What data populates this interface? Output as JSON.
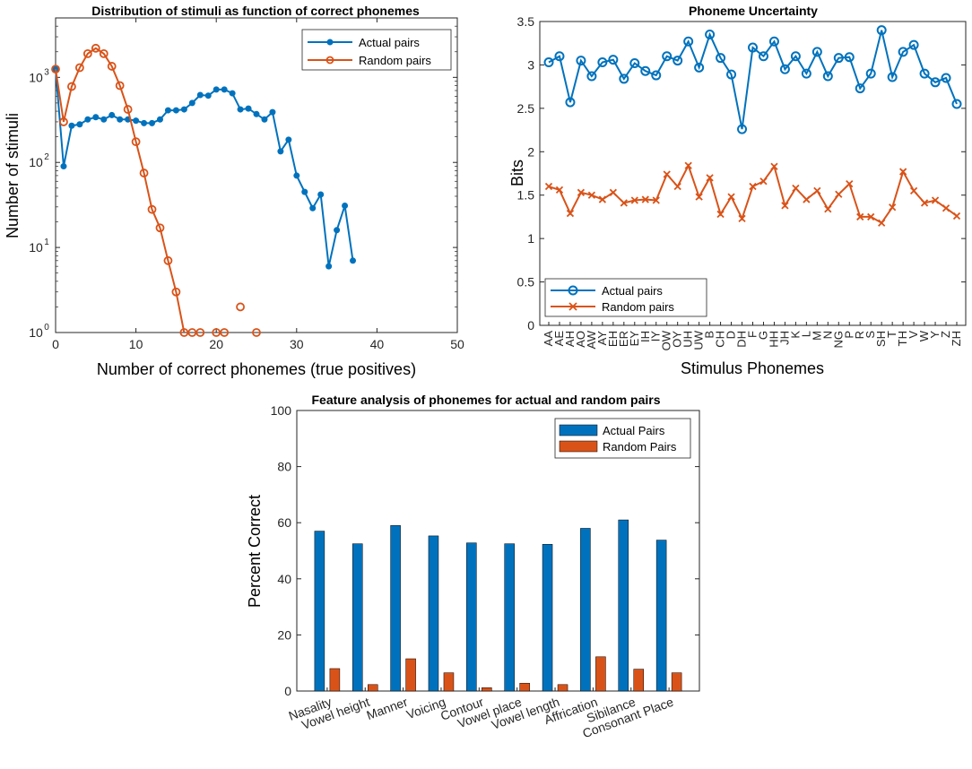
{
  "colors": {
    "actual": "#0072BD",
    "random": "#D95319"
  },
  "chart_data": [
    {
      "type": "line",
      "title": "Distribution of stimuli as function of correct phonemes",
      "xlabel": "Number of correct phonemes (true positives)",
      "ylabel": "Number of stimuli",
      "xlim": [
        0,
        50
      ],
      "ylim": [
        1,
        5000
      ],
      "yscale": "log",
      "xticks": [
        "0",
        "10",
        "20",
        "30",
        "40",
        "50"
      ],
      "yticks": [
        {
          "base": "10",
          "exp": "0"
        },
        {
          "base": "10",
          "exp": "1"
        },
        {
          "base": "10",
          "exp": "2"
        },
        {
          "base": "10",
          "exp": "3"
        }
      ],
      "legend_position": "top-right",
      "series": [
        {
          "name": "Actual pairs",
          "marker": "filled-circle",
          "x": [
            0,
            1,
            2,
            3,
            4,
            5,
            6,
            7,
            8,
            9,
            10,
            11,
            12,
            13,
            14,
            15,
            16,
            17,
            18,
            19,
            20,
            21,
            22,
            23,
            24,
            25,
            26,
            27,
            28,
            29,
            30,
            31,
            32,
            33,
            34,
            35,
            36,
            37
          ],
          "y": [
            1250,
            90,
            270,
            280,
            320,
            340,
            320,
            360,
            320,
            320,
            310,
            290,
            290,
            320,
            410,
            410,
            420,
            500,
            620,
            610,
            720,
            720,
            650,
            420,
            430,
            370,
            320,
            390,
            135,
            185,
            70,
            45,
            29,
            42,
            6,
            16,
            31,
            7
          ]
        },
        {
          "name": "Random pairs",
          "marker": "open-circle",
          "x": [
            0,
            1,
            2,
            3,
            4,
            5,
            6,
            7,
            8,
            9,
            10,
            11,
            12,
            13,
            14,
            15,
            16,
            17,
            18,
            20,
            21,
            23,
            25
          ],
          "y": [
            1250,
            300,
            780,
            1300,
            1900,
            2200,
            1900,
            1350,
            800,
            420,
            175,
            75,
            28,
            17,
            7,
            3,
            1,
            1,
            1,
            1,
            1,
            2,
            1
          ]
        }
      ]
    },
    {
      "type": "line",
      "title": "Phoneme Uncertainty",
      "xlabel": "Stimulus Phonemes",
      "ylabel": "Bits",
      "ylim": [
        0,
        3.5
      ],
      "yticks": [
        "0",
        "0.5",
        "1",
        "1.5",
        "2",
        "2.5",
        "3",
        "3.5"
      ],
      "categories": [
        "AA",
        "AE",
        "AH",
        "AO",
        "AW",
        "AY",
        "EH",
        "ER",
        "EY",
        "IH",
        "IY",
        "OW",
        "OY",
        "UH",
        "UW",
        "B",
        "CH",
        "D",
        "DH",
        "F",
        "G",
        "HH",
        "JH",
        "K",
        "L",
        "M",
        "N",
        "NG",
        "P",
        "R",
        "S",
        "SH",
        "T",
        "TH",
        "V",
        "W",
        "Y",
        "Z",
        "ZH"
      ],
      "legend_position": "bottom-left",
      "series": [
        {
          "name": "Actual pairs",
          "marker": "open-circle",
          "values": [
            3.03,
            3.1,
            2.57,
            3.05,
            2.87,
            3.03,
            3.06,
            2.84,
            3.02,
            2.93,
            2.88,
            3.1,
            3.05,
            3.27,
            2.97,
            3.35,
            3.08,
            2.89,
            2.26,
            3.2,
            3.1,
            3.27,
            2.95,
            3.1,
            2.9,
            3.15,
            2.87,
            3.08,
            3.09,
            2.73,
            2.9,
            3.4,
            2.86,
            3.15,
            3.23,
            2.9,
            2.8,
            2.85,
            2.55
          ]
        },
        {
          "name": "Random pairs",
          "marker": "x",
          "values": [
            1.6,
            1.56,
            1.29,
            1.53,
            1.5,
            1.45,
            1.53,
            1.41,
            1.44,
            1.45,
            1.44,
            1.74,
            1.6,
            1.84,
            1.48,
            1.7,
            1.28,
            1.48,
            1.23,
            1.6,
            1.66,
            1.83,
            1.38,
            1.58,
            1.45,
            1.55,
            1.34,
            1.51,
            1.63,
            1.25,
            1.25,
            1.18,
            1.36,
            1.77,
            1.55,
            1.41,
            1.44,
            1.35,
            1.26
          ]
        }
      ]
    },
    {
      "type": "bar",
      "title": "Feature analysis of phonemes for actual and random pairs",
      "xlabel": "",
      "ylabel": "Percent Correct",
      "ylim": [
        0,
        100
      ],
      "yticks": [
        "0",
        "20",
        "40",
        "60",
        "80",
        "100"
      ],
      "categories": [
        "Nasality",
        "Vowel height",
        "Manner",
        "Voicing",
        "Contour",
        "Vowel place",
        "Vowel length",
        "Affrication",
        "Sibilance",
        "Consonant Place"
      ],
      "legend_position": "top-right",
      "series": [
        {
          "name": "Actual Pairs",
          "values": [
            57,
            52.5,
            59,
            55.3,
            52.8,
            52.5,
            52.3,
            58,
            61,
            53.8
          ]
        },
        {
          "name": "Random Pairs",
          "values": [
            8,
            2.3,
            11.5,
            6.5,
            1.2,
            2.8,
            2.3,
            12.2,
            7.8,
            6.5
          ]
        }
      ]
    }
  ]
}
